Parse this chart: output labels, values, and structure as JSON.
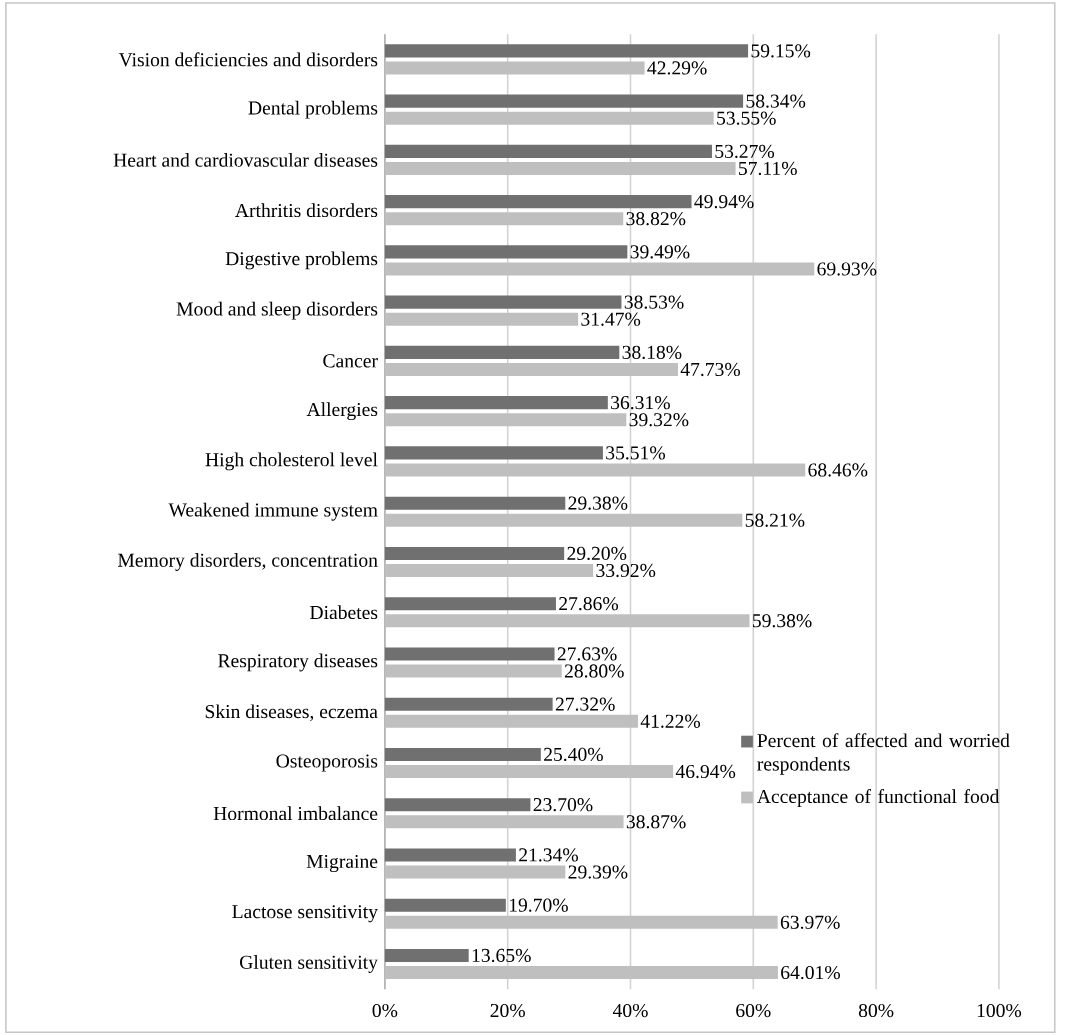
{
  "chart_data": {
    "type": "bar",
    "orientation": "horizontal",
    "categories": [
      "Vision deficiencies and disorders",
      "Dental problems",
      "Heart and cardiovascular diseases",
      "Arthritis disorders",
      "Digestive problems",
      "Mood and sleep disorders",
      "Cancer",
      "Allergies",
      "High cholesterol level",
      "Weakened immune system",
      "Memory disorders, concentration",
      "Diabetes",
      "Respiratory diseases",
      "Skin diseases, eczema",
      "Osteoporosis",
      "Hormonal imbalance",
      "Migraine",
      "Lactose sensitivity",
      "Gluten sensitivity"
    ],
    "series": [
      {
        "name": "Percent of affected and worried respondents",
        "color": "#707070",
        "values": [
          59.15,
          58.34,
          53.27,
          49.94,
          39.49,
          38.53,
          38.18,
          36.31,
          35.51,
          29.38,
          29.2,
          27.86,
          27.63,
          27.32,
          25.4,
          23.7,
          21.34,
          19.7,
          13.65
        ],
        "value_labels": [
          "59.15%",
          "58.34%",
          "53.27%",
          "49.94%",
          "39.49%",
          "38.53%",
          "38.18%",
          "36.31%",
          "35.51%",
          "29.38%",
          "29.20%",
          "27.86%",
          "27.63%",
          "27.32%",
          "25.40%",
          "23.70%",
          "21.34%",
          "19.70%",
          "13.65%"
        ]
      },
      {
        "name": "Acceptance of functional food",
        "color": "#bfbfbf",
        "values": [
          42.29,
          53.55,
          57.11,
          38.82,
          69.93,
          31.47,
          47.73,
          39.32,
          68.46,
          58.21,
          33.92,
          59.38,
          28.8,
          41.22,
          46.94,
          38.87,
          29.39,
          63.97,
          64.01
        ],
        "value_labels": [
          "42.29%",
          "53.55%",
          "57.11%",
          "38.82%",
          "69.93%",
          "31.47%",
          "47.73%",
          "39.32%",
          "68.46%",
          "58.21%",
          "33.92%",
          "59.38%",
          "28.80%",
          "41.22%",
          "46.94%",
          "38.87%",
          "29.39%",
          "63.97%",
          "64.01%"
        ]
      }
    ],
    "xlim": [
      0,
      100
    ],
    "xticks": [
      {
        "value": 0,
        "label": "0%"
      },
      {
        "value": 20,
        "label": "20%"
      },
      {
        "value": 40,
        "label": "40%"
      },
      {
        "value": 60,
        "label": "60%"
      },
      {
        "value": 80,
        "label": "80%"
      },
      {
        "value": 100,
        "label": "100%"
      }
    ],
    "grid": "x",
    "legend": "right"
  }
}
